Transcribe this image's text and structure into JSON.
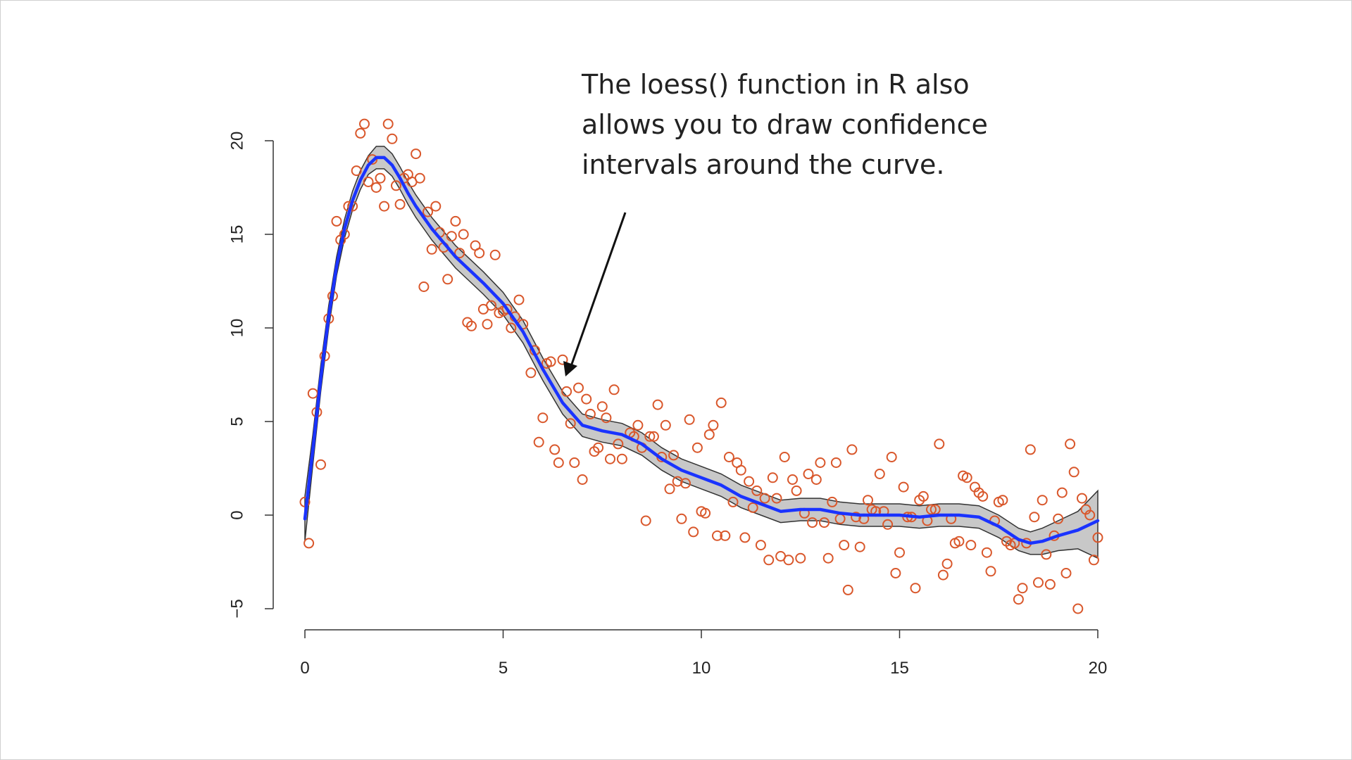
{
  "annotation": {
    "text": "The loess() function in R also\nallows you to draw confidence\nintervals around the curve."
  },
  "colors": {
    "points": "#d9572b",
    "curve": "#1a33ff",
    "band_fill": "#c8c8c8",
    "band_edge": "#333333",
    "axis": "#333333"
  },
  "chart_data": {
    "type": "scatter",
    "title": "",
    "xlabel": "",
    "ylabel": "",
    "xlim": [
      0,
      20
    ],
    "ylim": [
      -5,
      20
    ],
    "x_ticks": [
      0,
      5,
      10,
      15,
      20
    ],
    "y_ticks": [
      -5,
      0,
      5,
      10,
      15,
      20
    ],
    "grid": false,
    "points": [
      [
        0.0,
        0.7
      ],
      [
        0.1,
        -1.5
      ],
      [
        0.2,
        6.5
      ],
      [
        0.3,
        5.5
      ],
      [
        0.4,
        2.7
      ],
      [
        0.5,
        8.5
      ],
      [
        0.6,
        10.5
      ],
      [
        0.7,
        11.7
      ],
      [
        0.8,
        15.7
      ],
      [
        0.9,
        14.7
      ],
      [
        1.0,
        15.0
      ],
      [
        1.1,
        16.5
      ],
      [
        1.2,
        16.5
      ],
      [
        1.3,
        18.4
      ],
      [
        1.4,
        20.4
      ],
      [
        1.5,
        20.9
      ],
      [
        1.6,
        17.8
      ],
      [
        1.7,
        19.0
      ],
      [
        1.8,
        17.5
      ],
      [
        1.9,
        18.0
      ],
      [
        2.0,
        16.5
      ],
      [
        2.1,
        20.9
      ],
      [
        2.2,
        20.1
      ],
      [
        2.3,
        17.6
      ],
      [
        2.4,
        16.6
      ],
      [
        2.5,
        18.0
      ],
      [
        2.6,
        18.2
      ],
      [
        2.7,
        17.8
      ],
      [
        2.8,
        19.3
      ],
      [
        2.9,
        18.0
      ],
      [
        3.0,
        12.2
      ],
      [
        3.1,
        16.2
      ],
      [
        3.2,
        14.2
      ],
      [
        3.3,
        16.5
      ],
      [
        3.4,
        15.1
      ],
      [
        3.5,
        14.3
      ],
      [
        3.6,
        12.6
      ],
      [
        3.7,
        14.9
      ],
      [
        3.8,
        15.7
      ],
      [
        3.9,
        14.0
      ],
      [
        4.0,
        15.0
      ],
      [
        4.1,
        10.3
      ],
      [
        4.2,
        10.1
      ],
      [
        4.3,
        14.4
      ],
      [
        4.4,
        14.0
      ],
      [
        4.5,
        11.0
      ],
      [
        4.6,
        10.2
      ],
      [
        4.7,
        11.2
      ],
      [
        4.8,
        13.9
      ],
      [
        4.9,
        10.8
      ],
      [
        5.0,
        10.9
      ],
      [
        5.1,
        11.0
      ],
      [
        5.2,
        10.0
      ],
      [
        5.3,
        10.6
      ],
      [
        5.4,
        11.5
      ],
      [
        5.5,
        10.2
      ],
      [
        5.7,
        7.6
      ],
      [
        5.8,
        8.8
      ],
      [
        5.9,
        3.9
      ],
      [
        6.0,
        5.2
      ],
      [
        6.1,
        8.1
      ],
      [
        6.2,
        8.2
      ],
      [
        6.3,
        3.5
      ],
      [
        6.4,
        2.8
      ],
      [
        6.5,
        8.3
      ],
      [
        6.6,
        6.6
      ],
      [
        6.7,
        4.9
      ],
      [
        6.8,
        2.8
      ],
      [
        6.9,
        6.8
      ],
      [
        7.0,
        1.9
      ],
      [
        7.1,
        6.2
      ],
      [
        7.2,
        5.4
      ],
      [
        7.3,
        3.4
      ],
      [
        7.4,
        3.6
      ],
      [
        7.5,
        5.8
      ],
      [
        7.6,
        5.2
      ],
      [
        7.7,
        3.0
      ],
      [
        7.8,
        6.7
      ],
      [
        7.9,
        3.8
      ],
      [
        8.0,
        3.0
      ],
      [
        8.2,
        4.4
      ],
      [
        8.3,
        4.2
      ],
      [
        8.4,
        4.8
      ],
      [
        8.5,
        3.6
      ],
      [
        8.6,
        -0.3
      ],
      [
        8.7,
        4.2
      ],
      [
        8.8,
        4.2
      ],
      [
        8.9,
        5.9
      ],
      [
        9.0,
        3.1
      ],
      [
        9.1,
        4.8
      ],
      [
        9.2,
        1.4
      ],
      [
        9.3,
        3.2
      ],
      [
        9.4,
        1.8
      ],
      [
        9.5,
        -0.2
      ],
      [
        9.6,
        1.7
      ],
      [
        9.7,
        5.1
      ],
      [
        9.8,
        -0.9
      ],
      [
        9.9,
        3.6
      ],
      [
        10.0,
        0.2
      ],
      [
        10.1,
        0.1
      ],
      [
        10.2,
        4.3
      ],
      [
        10.3,
        4.8
      ],
      [
        10.4,
        -1.1
      ],
      [
        10.5,
        6.0
      ],
      [
        10.6,
        -1.1
      ],
      [
        10.7,
        3.1
      ],
      [
        10.8,
        0.7
      ],
      [
        10.9,
        2.8
      ],
      [
        11.0,
        2.4
      ],
      [
        11.1,
        -1.2
      ],
      [
        11.2,
        1.8
      ],
      [
        11.3,
        0.4
      ],
      [
        11.4,
        1.3
      ],
      [
        11.5,
        -1.6
      ],
      [
        11.6,
        0.9
      ],
      [
        11.7,
        -2.4
      ],
      [
        11.8,
        2.0
      ],
      [
        11.9,
        0.9
      ],
      [
        12.0,
        -2.2
      ],
      [
        12.1,
        3.1
      ],
      [
        12.2,
        -2.4
      ],
      [
        12.3,
        1.9
      ],
      [
        12.4,
        1.3
      ],
      [
        12.5,
        -2.3
      ],
      [
        12.6,
        0.1
      ],
      [
        12.7,
        2.2
      ],
      [
        12.8,
        -0.4
      ],
      [
        12.9,
        1.9
      ],
      [
        13.0,
        2.8
      ],
      [
        13.1,
        -0.4
      ],
      [
        13.2,
        -2.3
      ],
      [
        13.3,
        0.7
      ],
      [
        13.4,
        2.8
      ],
      [
        13.5,
        -0.2
      ],
      [
        13.6,
        -1.6
      ],
      [
        13.7,
        -4.0
      ],
      [
        13.8,
        3.5
      ],
      [
        13.9,
        -0.1
      ],
      [
        14.0,
        -1.7
      ],
      [
        14.1,
        -0.2
      ],
      [
        14.2,
        0.8
      ],
      [
        14.3,
        0.3
      ],
      [
        14.4,
        0.2
      ],
      [
        14.5,
        2.2
      ],
      [
        14.6,
        0.2
      ],
      [
        14.7,
        -0.5
      ],
      [
        14.8,
        3.1
      ],
      [
        14.9,
        -3.1
      ],
      [
        15.0,
        -2.0
      ],
      [
        15.1,
        1.5
      ],
      [
        15.2,
        -0.1
      ],
      [
        15.3,
        -0.1
      ],
      [
        15.4,
        -3.9
      ],
      [
        15.5,
        0.8
      ],
      [
        15.6,
        1.0
      ],
      [
        15.7,
        -0.3
      ],
      [
        15.8,
        0.3
      ],
      [
        15.9,
        0.3
      ],
      [
        16.0,
        3.8
      ],
      [
        16.1,
        -3.2
      ],
      [
        16.2,
        -2.6
      ],
      [
        16.3,
        -0.2
      ],
      [
        16.4,
        -1.5
      ],
      [
        16.5,
        -1.4
      ],
      [
        16.6,
        2.1
      ],
      [
        16.7,
        2.0
      ],
      [
        16.8,
        -1.6
      ],
      [
        16.9,
        1.5
      ],
      [
        17.0,
        1.2
      ],
      [
        17.1,
        1.0
      ],
      [
        17.2,
        -2.0
      ],
      [
        17.3,
        -3.0
      ],
      [
        17.4,
        -0.3
      ],
      [
        17.5,
        0.7
      ],
      [
        17.6,
        0.8
      ],
      [
        17.7,
        -1.4
      ],
      [
        17.8,
        -1.6
      ],
      [
        17.9,
        -1.5
      ],
      [
        18.0,
        -4.5
      ],
      [
        18.1,
        -3.9
      ],
      [
        18.2,
        -1.5
      ],
      [
        18.3,
        3.5
      ],
      [
        18.4,
        -0.1
      ],
      [
        18.5,
        -3.6
      ],
      [
        18.6,
        0.8
      ],
      [
        18.7,
        -2.1
      ],
      [
        18.8,
        -3.7
      ],
      [
        18.9,
        -1.1
      ],
      [
        19.0,
        -0.2
      ],
      [
        19.1,
        1.2
      ],
      [
        19.2,
        -3.1
      ],
      [
        19.3,
        3.8
      ],
      [
        19.4,
        2.3
      ],
      [
        19.5,
        -5.0
      ],
      [
        19.6,
        0.9
      ],
      [
        19.7,
        0.3
      ],
      [
        19.8,
        0.0
      ],
      [
        19.9,
        -2.4
      ],
      [
        20.0,
        -1.2
      ]
    ],
    "fit": {
      "x": [
        0.0,
        0.2,
        0.4,
        0.6,
        0.8,
        1.0,
        1.2,
        1.4,
        1.6,
        1.8,
        2.0,
        2.2,
        2.4,
        2.6,
        2.8,
        3.0,
        3.2,
        3.4,
        3.6,
        3.8,
        4.0,
        4.5,
        5.0,
        5.5,
        6.0,
        6.5,
        7.0,
        7.5,
        8.0,
        8.5,
        9.0,
        9.5,
        10.0,
        10.5,
        11.0,
        11.5,
        12.0,
        12.5,
        13.0,
        13.5,
        14.0,
        14.5,
        15.0,
        15.5,
        16.0,
        16.5,
        17.0,
        17.5,
        18.0,
        18.3,
        18.6,
        19.0,
        19.5,
        20.0
      ],
      "y": [
        -0.2,
        3.5,
        7.3,
        10.6,
        13.3,
        15.3,
        16.8,
        17.9,
        18.7,
        19.1,
        19.1,
        18.7,
        18.0,
        17.2,
        16.5,
        15.9,
        15.3,
        14.8,
        14.3,
        13.8,
        13.4,
        12.4,
        11.3,
        9.8,
        7.8,
        6.0,
        4.8,
        4.5,
        4.3,
        3.8,
        3.0,
        2.4,
        2.0,
        1.6,
        1.0,
        0.6,
        0.2,
        0.3,
        0.3,
        0.1,
        0.0,
        0.0,
        0.0,
        -0.1,
        0.0,
        0.0,
        -0.1,
        -0.6,
        -1.3,
        -1.5,
        -1.4,
        -1.1,
        -0.8,
        -0.3
      ],
      "lower": [
        -1.4,
        2.7,
        6.6,
        10.0,
        12.8,
        14.8,
        16.3,
        17.4,
        18.2,
        18.5,
        18.5,
        18.1,
        17.4,
        16.6,
        15.9,
        15.3,
        14.7,
        14.2,
        13.7,
        13.2,
        12.8,
        11.8,
        10.7,
        9.2,
        7.2,
        5.4,
        4.2,
        3.9,
        3.7,
        3.2,
        2.4,
        1.8,
        1.4,
        1.0,
        0.4,
        0.0,
        -0.4,
        -0.3,
        -0.3,
        -0.5,
        -0.6,
        -0.6,
        -0.6,
        -0.7,
        -0.6,
        -0.6,
        -0.7,
        -1.2,
        -1.9,
        -2.1,
        -2.1,
        -1.9,
        -1.8,
        -2.3
      ],
      "upper": [
        1.0,
        4.3,
        8.0,
        11.2,
        13.8,
        15.8,
        17.3,
        18.4,
        19.2,
        19.7,
        19.7,
        19.3,
        18.6,
        17.8,
        17.1,
        16.5,
        15.9,
        15.4,
        14.9,
        14.4,
        14.0,
        13.0,
        11.9,
        10.4,
        8.4,
        6.6,
        5.4,
        5.1,
        4.9,
        4.4,
        3.6,
        3.0,
        2.6,
        2.2,
        1.6,
        1.2,
        0.8,
        0.9,
        0.9,
        0.7,
        0.6,
        0.6,
        0.6,
        0.5,
        0.6,
        0.6,
        0.5,
        0.0,
        -0.7,
        -0.9,
        -0.7,
        -0.3,
        0.2,
        1.3
      ]
    }
  }
}
